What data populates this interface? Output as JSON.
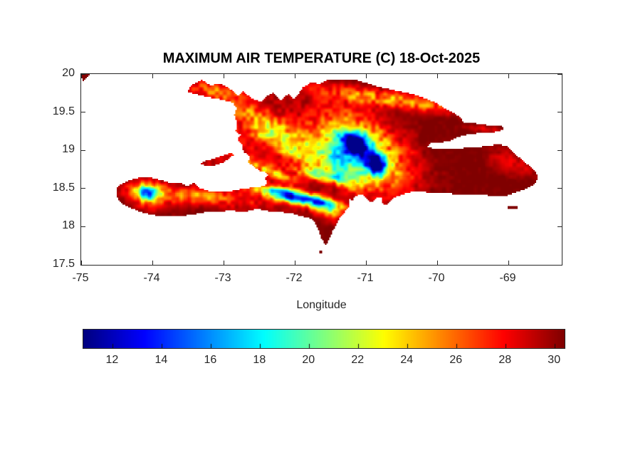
{
  "figure": {
    "background": "#ffffff",
    "axis_color": "#262626",
    "title_color": "#000000"
  },
  "chart_data": {
    "type": "heatmap",
    "title": "MAXIMUM AIR TEMPERATURE (C) 18-Oct-2025",
    "xlabel": "Longitude",
    "x_ticks": [
      -75,
      -74,
      -73,
      -72,
      -71,
      -70,
      -69
    ],
    "y_ticks": [
      20,
      19.5,
      19,
      18.5,
      18,
      17.5
    ],
    "xlim": [
      -75,
      -68.25
    ],
    "ylim": [
      17.5,
      20
    ],
    "colormap": "jet",
    "clim": [
      10.8,
      30.4
    ],
    "colorbar": {
      "orientation": "horizontal",
      "ticks": [
        12,
        14,
        16,
        18,
        20,
        22,
        24,
        26,
        28,
        30
      ]
    },
    "base_temperature_c": 30.5,
    "noise": {
      "octave1_deg": 0.055,
      "octave2_deg": 0.13,
      "base_amp": 0.45,
      "amp_per_cooling": 0.55,
      "amp_cap": 3.2
    },
    "land": {
      "hispaniola": [
        [
          -73.51,
          19.77
        ],
        [
          -73.43,
          19.87
        ],
        [
          -73.3,
          19.92
        ],
        [
          -73.18,
          19.85
        ],
        [
          -73.05,
          19.88
        ],
        [
          -72.93,
          19.82
        ],
        [
          -72.8,
          19.71
        ],
        [
          -72.73,
          19.77
        ],
        [
          -72.6,
          19.68
        ],
        [
          -72.47,
          19.64
        ],
        [
          -72.4,
          19.71
        ],
        [
          -72.3,
          19.75
        ],
        [
          -72.2,
          19.66
        ],
        [
          -72.09,
          19.73
        ],
        [
          -72.0,
          19.67
        ],
        [
          -71.88,
          19.83
        ],
        [
          -71.76,
          19.89
        ],
        [
          -71.65,
          19.87
        ],
        [
          -71.53,
          19.93
        ],
        [
          -71.35,
          19.93
        ],
        [
          -71.16,
          19.93
        ],
        [
          -70.98,
          19.88
        ],
        [
          -70.81,
          19.83
        ],
        [
          -70.61,
          19.79
        ],
        [
          -70.41,
          19.75
        ],
        [
          -70.21,
          19.7
        ],
        [
          -70.02,
          19.63
        ],
        [
          -69.91,
          19.56
        ],
        [
          -69.79,
          19.5
        ],
        [
          -69.69,
          19.44
        ],
        [
          -69.63,
          19.37
        ],
        [
          -69.53,
          19.36
        ],
        [
          -69.37,
          19.34
        ],
        [
          -69.21,
          19.32
        ],
        [
          -69.09,
          19.32
        ],
        [
          -69.06,
          19.27
        ],
        [
          -69.19,
          19.24
        ],
        [
          -69.37,
          19.23
        ],
        [
          -69.55,
          19.21
        ],
        [
          -69.68,
          19.18
        ],
        [
          -69.8,
          19.13
        ],
        [
          -69.95,
          19.1
        ],
        [
          -70.09,
          19.1
        ],
        [
          -70.13,
          19.04
        ],
        [
          -69.98,
          19.02
        ],
        [
          -69.81,
          19.02
        ],
        [
          -69.63,
          19.03
        ],
        [
          -69.45,
          19.04
        ],
        [
          -69.29,
          19.06
        ],
        [
          -69.15,
          19.08
        ],
        [
          -69.03,
          19.06
        ],
        [
          -68.95,
          18.99
        ],
        [
          -68.85,
          18.91
        ],
        [
          -68.75,
          18.83
        ],
        [
          -68.65,
          18.75
        ],
        [
          -68.58,
          18.67
        ],
        [
          -68.61,
          18.57
        ],
        [
          -68.71,
          18.51
        ],
        [
          -68.85,
          18.46
        ],
        [
          -69.01,
          18.41
        ],
        [
          -69.19,
          18.4
        ],
        [
          -69.39,
          18.42
        ],
        [
          -69.59,
          18.43
        ],
        [
          -69.79,
          18.43
        ],
        [
          -69.97,
          18.44
        ],
        [
          -70.15,
          18.45
        ],
        [
          -70.33,
          18.46
        ],
        [
          -70.5,
          18.42
        ],
        [
          -70.64,
          18.36
        ],
        [
          -70.7,
          18.28
        ],
        [
          -70.78,
          18.31
        ],
        [
          -70.76,
          18.38
        ],
        [
          -70.85,
          18.38
        ],
        [
          -70.92,
          18.32
        ],
        [
          -71.0,
          18.37
        ],
        [
          -71.05,
          18.43
        ],
        [
          -71.15,
          18.4
        ],
        [
          -71.19,
          18.33
        ],
        [
          -71.24,
          18.37
        ],
        [
          -71.23,
          18.27
        ],
        [
          -71.28,
          18.21
        ],
        [
          -71.35,
          18.14
        ],
        [
          -71.41,
          18.04
        ],
        [
          -71.47,
          17.93
        ],
        [
          -71.52,
          17.83
        ],
        [
          -71.56,
          17.75
        ],
        [
          -71.63,
          17.85
        ],
        [
          -71.67,
          17.96
        ],
        [
          -71.72,
          18.05
        ],
        [
          -71.76,
          18.1
        ],
        [
          -71.88,
          18.13
        ],
        [
          -72.03,
          18.17
        ],
        [
          -72.2,
          18.19
        ],
        [
          -72.36,
          18.2
        ],
        [
          -72.53,
          18.24
        ],
        [
          -72.71,
          18.19
        ],
        [
          -72.89,
          18.21
        ],
        [
          -73.07,
          18.2
        ],
        [
          -73.25,
          18.19
        ],
        [
          -73.43,
          18.16
        ],
        [
          -73.61,
          18.14
        ],
        [
          -73.79,
          18.13
        ],
        [
          -73.97,
          18.15
        ],
        [
          -74.15,
          18.19
        ],
        [
          -74.32,
          18.25
        ],
        [
          -74.44,
          18.31
        ],
        [
          -74.51,
          18.41
        ],
        [
          -74.5,
          18.5
        ],
        [
          -74.43,
          18.56
        ],
        [
          -74.31,
          18.61
        ],
        [
          -74.17,
          18.64
        ],
        [
          -74.02,
          18.64
        ],
        [
          -73.87,
          18.61
        ],
        [
          -73.73,
          18.56
        ],
        [
          -73.61,
          18.58
        ],
        [
          -73.51,
          18.53
        ],
        [
          -73.41,
          18.57
        ],
        [
          -73.33,
          18.5
        ],
        [
          -73.18,
          18.46
        ],
        [
          -73.03,
          18.45
        ],
        [
          -72.87,
          18.47
        ],
        [
          -72.71,
          18.5
        ],
        [
          -72.56,
          18.51
        ],
        [
          -72.44,
          18.53
        ],
        [
          -72.38,
          18.57
        ],
        [
          -72.42,
          18.63
        ],
        [
          -72.38,
          18.68
        ],
        [
          -72.43,
          18.72
        ],
        [
          -72.5,
          18.73
        ],
        [
          -72.58,
          18.79
        ],
        [
          -72.66,
          18.84
        ],
        [
          -72.63,
          18.92
        ],
        [
          -72.72,
          18.98
        ],
        [
          -72.74,
          19.07
        ],
        [
          -72.81,
          19.13
        ],
        [
          -72.76,
          19.2
        ],
        [
          -72.83,
          19.25
        ],
        [
          -72.81,
          19.36
        ],
        [
          -72.85,
          19.46
        ],
        [
          -72.82,
          19.56
        ],
        [
          -72.87,
          19.63
        ],
        [
          -73.01,
          19.66
        ],
        [
          -73.17,
          19.69
        ],
        [
          -73.32,
          19.72
        ],
        [
          -73.45,
          19.75
        ]
      ],
      "gonave": [
        [
          -73.32,
          18.82
        ],
        [
          -73.23,
          18.79
        ],
        [
          -73.13,
          18.8
        ],
        [
          -73.01,
          18.84
        ],
        [
          -72.91,
          18.9
        ],
        [
          -72.85,
          18.95
        ],
        [
          -72.91,
          18.96
        ],
        [
          -73.03,
          18.93
        ],
        [
          -73.17,
          18.88
        ],
        [
          -73.28,
          18.86
        ]
      ],
      "cuba_corner": [
        [
          -75.0,
          20.0
        ],
        [
          -74.88,
          20.0
        ],
        [
          -74.98,
          19.89
        ]
      ],
      "islets": [
        {
          "name": "ile-a-vache",
          "lon": -73.7,
          "lat": 18.19,
          "w": 0.05,
          "h": 0.03
        },
        {
          "name": "saona",
          "lon": -69.02,
          "lat": 18.27,
          "w": 0.14,
          "h": 0.04
        },
        {
          "name": "beata",
          "lon": -71.66,
          "lat": 17.69,
          "w": 0.04,
          "h": 0.03
        }
      ]
    },
    "cool_features": [
      {
        "name": "cordillera-central",
        "lon": -71.05,
        "lat": 18.98,
        "dT": 9.0,
        "sx": 0.5,
        "sy": 0.28,
        "ang": -31
      },
      {
        "name": "pico-duarte-core",
        "lon": -71.17,
        "lat": 19.09,
        "dT": 15.0,
        "sx": 0.16,
        "sy": 0.11,
        "ang": -20
      },
      {
        "name": "valle-nuevo-core",
        "lon": -70.86,
        "lat": 18.82,
        "dT": 14.0,
        "sx": 0.12,
        "sy": 0.1,
        "ang": -30
      },
      {
        "name": "central-southwest",
        "lon": -71.35,
        "lat": 18.78,
        "dT": 6.0,
        "sx": 0.25,
        "sy": 0.12,
        "ang": -35
      },
      {
        "name": "cordillera-septentrional",
        "lon": -70.65,
        "lat": 19.67,
        "dT": 5.5,
        "sx": 0.75,
        "sy": 0.075,
        "ang": -7
      },
      {
        "name": "sierra-de-neiba",
        "lon": -71.62,
        "lat": 18.68,
        "dT": 8.0,
        "sx": 0.28,
        "sy": 0.055,
        "ang": -12
      },
      {
        "name": "chaine-des-matheux",
        "lon": -72.35,
        "lat": 18.72,
        "dT": 5.0,
        "sx": 0.25,
        "sy": 0.05,
        "ang": -20
      },
      {
        "name": "selle-bahoruco-ridge",
        "lon": -71.95,
        "lat": 18.38,
        "dT": 13.0,
        "sx": 0.42,
        "sy": 0.06,
        "ang": -12
      },
      {
        "name": "la-selle-core",
        "lon": -72.15,
        "lat": 18.43,
        "dT": 5.0,
        "sx": 0.14,
        "sy": 0.045,
        "ang": -12
      },
      {
        "name": "bahoruco-core",
        "lon": -71.62,
        "lat": 18.32,
        "dT": 4.5,
        "sx": 0.12,
        "sy": 0.05,
        "ang": -12
      },
      {
        "name": "massif-de-la-hotte",
        "lon": -74.08,
        "lat": 18.45,
        "dT": 10.0,
        "sx": 0.1,
        "sy": 0.07,
        "ang": -10
      },
      {
        "name": "hotte-halo",
        "lon": -74.05,
        "lat": 18.42,
        "dT": 4.5,
        "sx": 0.22,
        "sy": 0.12,
        "ang": -10
      },
      {
        "name": "tiburon-spine",
        "lon": -73.35,
        "lat": 18.4,
        "dT": 4.2,
        "sx": 0.55,
        "sy": 0.07,
        "ang": -5
      },
      {
        "name": "massif-du-nord",
        "lon": -72.28,
        "lat": 19.3,
        "dT": 4.5,
        "sx": 0.55,
        "sy": 0.1,
        "ang": -25
      },
      {
        "name": "nw-peninsula-ridge",
        "lon": -73.1,
        "lat": 19.78,
        "dT": 3.5,
        "sx": 0.3,
        "sy": 0.06,
        "ang": -8
      },
      {
        "name": "haiti-interior",
        "lon": -72.75,
        "lat": 19.1,
        "dT": 2.2,
        "sx": 0.8,
        "sy": 0.55,
        "ang": -20
      },
      {
        "name": "montagnes-noires",
        "lon": -72.0,
        "lat": 19.0,
        "dT": 3.8,
        "sx": 0.35,
        "sy": 0.07,
        "ang": -28
      },
      {
        "name": "chaine-des-cahos",
        "lon": -72.35,
        "lat": 19.12,
        "dT": 3.0,
        "sx": 0.3,
        "sy": 0.05,
        "ang": -28
      },
      {
        "name": "cordillera-oriental",
        "lon": -68.95,
        "lat": 18.85,
        "dT": 2.0,
        "sx": 0.25,
        "sy": 0.12,
        "ang": -15
      },
      {
        "name": "samana-ridge",
        "lon": -69.35,
        "lat": 19.28,
        "dT": 1.8,
        "sx": 0.18,
        "sy": 0.035,
        "ang": -5
      },
      {
        "name": "bahoruco-south",
        "lon": -71.55,
        "lat": 18.2,
        "dT": 4.0,
        "sx": 0.15,
        "sy": 0.08,
        "ang": -20
      }
    ]
  }
}
